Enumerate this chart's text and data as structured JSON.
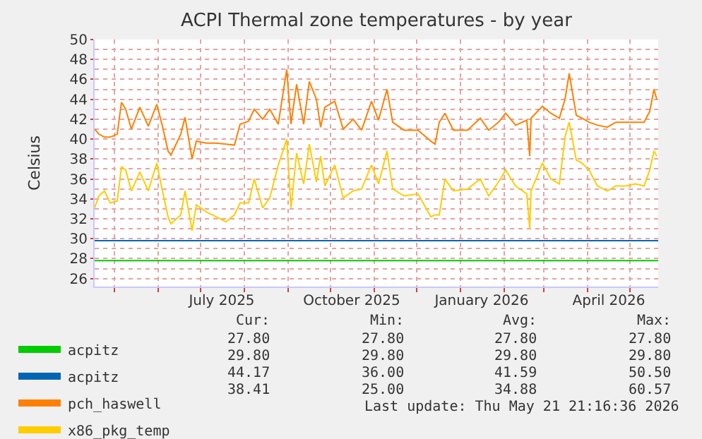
{
  "chart_data": {
    "type": "line",
    "title": "ACPI Thermal zone temperatures - by year",
    "ylabel": "Celsius",
    "x": [
      "2025-04-17",
      "2025-04-20",
      "2025-04-24",
      "2025-04-28",
      "2025-05-03",
      "2025-05-06",
      "2025-05-09",
      "2025-05-13",
      "2025-05-19",
      "2025-05-25",
      "2025-05-31",
      "2025-06-04",
      "2025-06-08",
      "2025-06-10",
      "2025-06-17",
      "2025-06-20",
      "2025-06-25",
      "2025-06-28",
      "2025-07-05",
      "2025-07-12",
      "2025-07-19",
      "2025-07-25",
      "2025-07-29",
      "2025-08-04",
      "2025-08-08",
      "2025-08-14",
      "2025-08-19",
      "2025-08-25",
      "2025-08-31",
      "2025-09-03",
      "2025-09-07",
      "2025-09-12",
      "2025-09-16",
      "2025-09-21",
      "2025-09-24",
      "2025-09-27",
      "2025-10-04",
      "2025-10-10",
      "2025-10-17",
      "2025-10-23",
      "2025-10-30",
      "2025-11-04",
      "2025-11-10",
      "2025-11-14",
      "2025-11-22",
      "2025-12-02",
      "2025-12-11",
      "2025-12-14",
      "2025-12-17",
      "2025-12-21",
      "2025-12-27",
      "2026-01-06",
      "2026-01-15",
      "2026-01-21",
      "2026-01-28",
      "2026-02-02",
      "2026-02-09",
      "2026-02-17",
      "2026-02-19",
      "2026-02-20",
      "2026-02-28",
      "2026-03-06",
      "2026-03-12",
      "2026-03-16",
      "2026-03-19",
      "2026-03-24",
      "2026-03-28",
      "2026-04-02",
      "2026-04-08",
      "2026-04-15",
      "2026-04-21",
      "2026-04-28",
      "2026-05-05",
      "2026-05-11",
      "2026-05-15",
      "2026-05-18",
      "2026-05-20"
    ],
    "series": [
      {
        "name": "acpitz",
        "color": "#00cc00",
        "x": [
          "2025-04-17",
          "2026-05-21"
        ],
        "values": [
          27.8,
          27.8
        ]
      },
      {
        "name": "acpitz",
        "color": "#0066b3",
        "x": [
          "2025-04-17",
          "2026-05-21"
        ],
        "values": [
          29.8,
          29.8
        ]
      },
      {
        "name": "pch_haswell",
        "color": "#ff8000",
        "values": [
          41.0,
          40.5,
          40.2,
          40.2,
          40.5,
          43.7,
          43.0,
          41.0,
          43.2,
          41.3,
          43.5,
          41.3,
          38.8,
          38.4,
          40.5,
          42.2,
          38.0,
          39.8,
          39.6,
          39.6,
          39.5,
          39.4,
          41.5,
          41.8,
          43.0,
          42.0,
          43.0,
          41.5,
          47.0,
          41.5,
          45.5,
          41.5,
          45.8,
          44.0,
          41.2,
          43.2,
          43.8,
          41.0,
          42.0,
          40.9,
          43.8,
          41.9,
          45.0,
          41.7,
          40.9,
          40.9,
          39.8,
          39.5,
          41.7,
          42.6,
          40.9,
          40.9,
          42.1,
          40.9,
          41.7,
          42.6,
          41.4,
          41.9,
          38.3,
          42.1,
          43.3,
          42.6,
          42.1,
          44.0,
          46.6,
          42.4,
          42.1,
          41.7,
          41.4,
          41.2,
          41.7,
          41.7,
          41.7,
          41.7,
          42.8,
          45.0,
          44.0
        ]
      },
      {
        "name": "x86_pkg_temp",
        "color": "#ffcc00",
        "values": [
          33.1,
          34.3,
          34.8,
          33.6,
          33.8,
          37.2,
          36.9,
          34.8,
          36.7,
          34.8,
          37.6,
          34.8,
          32.2,
          31.5,
          32.4,
          34.8,
          30.8,
          33.4,
          32.7,
          32.2,
          31.7,
          32.4,
          33.6,
          33.6,
          36.0,
          33.1,
          34.1,
          37.4,
          40.0,
          33.1,
          38.6,
          35.5,
          39.5,
          35.7,
          38.3,
          35.3,
          37.4,
          34.1,
          34.8,
          35.0,
          37.4,
          35.5,
          38.8,
          35.0,
          34.3,
          34.5,
          32.2,
          32.4,
          32.4,
          36.0,
          34.8,
          35.0,
          36.0,
          34.3,
          35.7,
          36.9,
          35.3,
          34.5,
          31.0,
          34.8,
          37.6,
          36.0,
          35.5,
          40.2,
          41.7,
          37.9,
          37.6,
          36.9,
          35.3,
          34.8,
          35.3,
          35.3,
          35.5,
          35.3,
          36.9,
          38.8,
          38.3
        ]
      }
    ],
    "xlim": [
      "2025-04-17",
      "2026-05-21"
    ],
    "xticks": [
      {
        "value": "2025-05-01",
        "label": null
      },
      {
        "value": "2025-06-01",
        "label": null
      },
      {
        "value": "2025-07-01",
        "label": null
      },
      {
        "value": "2025-07-16",
        "label": "July 2025"
      },
      {
        "value": "2025-08-01",
        "label": null
      },
      {
        "value": "2025-09-01",
        "label": null
      },
      {
        "value": "2025-10-01",
        "label": null
      },
      {
        "value": "2025-10-16",
        "label": "October 2025"
      },
      {
        "value": "2025-11-01",
        "label": null
      },
      {
        "value": "2025-12-01",
        "label": null
      },
      {
        "value": "2026-01-01",
        "label": null
      },
      {
        "value": "2026-01-16",
        "label": "January 2026"
      },
      {
        "value": "2026-02-01",
        "label": null
      },
      {
        "value": "2026-03-01",
        "label": null
      },
      {
        "value": "2026-04-01",
        "label": null
      },
      {
        "value": "2026-04-16",
        "label": "April 2026"
      },
      {
        "value": "2026-05-01",
        "label": null
      }
    ],
    "ylim": [
      25.2,
      50
    ],
    "yticks": [
      26,
      {
        "value": 27,
        "label": null
      },
      28,
      {
        "value": 29,
        "label": null
      },
      30,
      {
        "value": 31,
        "label": null
      },
      32,
      {
        "value": 33,
        "label": null
      },
      34,
      {
        "value": 35,
        "label": null
      },
      36,
      {
        "value": 37,
        "label": null
      },
      38,
      {
        "value": 39,
        "label": null
      },
      40,
      {
        "value": 41,
        "label": null
      },
      42,
      {
        "value": 43,
        "label": null
      },
      44,
      {
        "value": 45,
        "label": null
      },
      46,
      {
        "value": 47,
        "label": null
      },
      48,
      {
        "value": 49,
        "label": null
      },
      50
    ],
    "grid": true,
    "legend": "bottom left",
    "marker": "none",
    "line_style": "solid",
    "annotations": [
      "Cur:",
      "Min:",
      "Avg:",
      "Max:",
      "27.80",
      "27.80",
      "27.80",
      "27.80",
      "29.80",
      "29.80",
      "29.80",
      "29.80",
      "44.17",
      "36.00",
      "41.59",
      "50.50",
      "38.41",
      "25.00",
      "34.88",
      "60.57",
      "Last update: Thu May 21 21:16:36 2026"
    ]
  }
}
